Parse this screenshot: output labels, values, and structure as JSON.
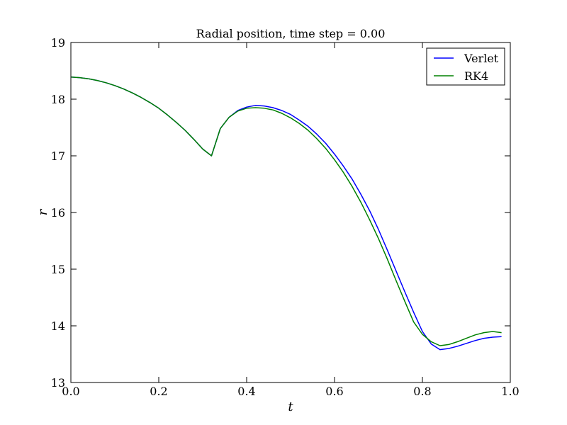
{
  "chart_data": {
    "type": "line",
    "title": "Radial position, time step = 0.00",
    "xlabel": "t",
    "ylabel": "r",
    "xlim": [
      0.0,
      1.0
    ],
    "ylim": [
      13,
      19
    ],
    "x_ticks": [
      0.0,
      0.2,
      0.4,
      0.6,
      0.8,
      1.0
    ],
    "x_tick_labels": [
      "0.0",
      "0.2",
      "0.4",
      "0.6",
      "0.8",
      "1.0"
    ],
    "y_ticks": [
      13,
      14,
      15,
      16,
      17,
      18,
      19
    ],
    "y_tick_labels": [
      "13",
      "14",
      "15",
      "16",
      "17",
      "18",
      "19"
    ],
    "grid": false,
    "legend_position": "top-right",
    "series": [
      {
        "name": "Verlet",
        "color": "#0000ff",
        "x": [
          0.0,
          0.02,
          0.04,
          0.06,
          0.08,
          0.1,
          0.12,
          0.14,
          0.16,
          0.18,
          0.2,
          0.22,
          0.24,
          0.26,
          0.28,
          0.3,
          0.32,
          0.34,
          0.36,
          0.38,
          0.4,
          0.42,
          0.44,
          0.46,
          0.48,
          0.5,
          0.52,
          0.54,
          0.56,
          0.58,
          0.6,
          0.62,
          0.64,
          0.66,
          0.68,
          0.7,
          0.72,
          0.74,
          0.76,
          0.78,
          0.8,
          0.82,
          0.84,
          0.86,
          0.88,
          0.9,
          0.92,
          0.94,
          0.96,
          0.98
        ],
        "y": [
          18.39,
          18.38,
          18.36,
          18.33,
          18.29,
          18.24,
          18.18,
          18.11,
          18.03,
          17.94,
          17.84,
          17.72,
          17.59,
          17.45,
          17.29,
          17.12,
          17.0,
          17.48,
          17.68,
          17.8,
          17.86,
          17.89,
          17.88,
          17.85,
          17.8,
          17.73,
          17.63,
          17.52,
          17.38,
          17.22,
          17.03,
          16.82,
          16.59,
          16.32,
          16.03,
          15.7,
          15.34,
          14.97,
          14.6,
          14.24,
          13.9,
          13.68,
          13.58,
          13.6,
          13.64,
          13.69,
          13.74,
          13.78,
          13.8,
          13.81
        ],
        "values_comment_free": true
      },
      {
        "name": "RK4",
        "color": "#008000",
        "x": [
          0.0,
          0.02,
          0.04,
          0.06,
          0.08,
          0.1,
          0.12,
          0.14,
          0.16,
          0.18,
          0.2,
          0.22,
          0.24,
          0.26,
          0.28,
          0.3,
          0.32,
          0.34,
          0.36,
          0.38,
          0.4,
          0.42,
          0.44,
          0.46,
          0.48,
          0.5,
          0.52,
          0.54,
          0.56,
          0.58,
          0.6,
          0.62,
          0.64,
          0.66,
          0.68,
          0.7,
          0.72,
          0.74,
          0.76,
          0.78,
          0.8,
          0.82,
          0.84,
          0.86,
          0.88,
          0.9,
          0.92,
          0.94,
          0.96,
          0.98
        ],
        "y": [
          18.39,
          18.38,
          18.36,
          18.33,
          18.29,
          18.24,
          18.18,
          18.11,
          18.03,
          17.94,
          17.84,
          17.72,
          17.59,
          17.45,
          17.29,
          17.12,
          17.0,
          17.48,
          17.68,
          17.79,
          17.84,
          17.85,
          17.84,
          17.81,
          17.75,
          17.67,
          17.57,
          17.45,
          17.3,
          17.13,
          16.93,
          16.71,
          16.46,
          16.18,
          15.87,
          15.54,
          15.18,
          14.8,
          14.43,
          14.07,
          13.85,
          13.72,
          13.65,
          13.67,
          13.72,
          13.78,
          13.84,
          13.88,
          13.9,
          13.88
        ]
      }
    ]
  }
}
